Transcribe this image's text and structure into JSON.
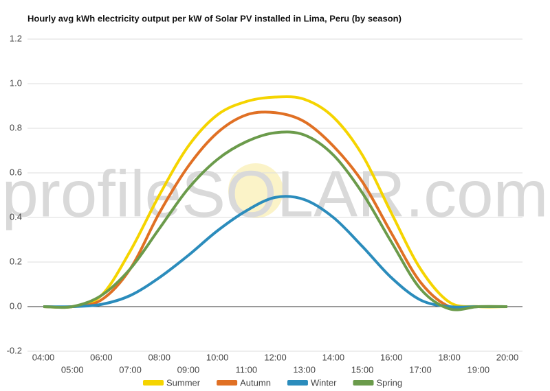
{
  "chart_data": {
    "type": "line",
    "title": "Hourly avg kWh electricity output per kW of Solar PV installed in Lima, Peru (by season)",
    "watermark": "profileSOLAR.com",
    "categories": [
      "04:00",
      "05:00",
      "06:00",
      "07:00",
      "08:00",
      "09:00",
      "10:00",
      "11:00",
      "12:00",
      "13:00",
      "14:00",
      "15:00",
      "16:00",
      "17:00",
      "18:00",
      "19:00",
      "20:00"
    ],
    "series": [
      {
        "name": "Summer",
        "color": "#f5d400",
        "values": [
          0,
          0,
          0.05,
          0.25,
          0.5,
          0.72,
          0.86,
          0.92,
          0.94,
          0.93,
          0.85,
          0.68,
          0.42,
          0.17,
          0.02,
          0,
          0
        ]
      },
      {
        "name": "Autumn",
        "color": "#e07024",
        "values": [
          0,
          0,
          0.03,
          0.17,
          0.42,
          0.63,
          0.78,
          0.86,
          0.87,
          0.83,
          0.72,
          0.56,
          0.33,
          0.11,
          0,
          0,
          0
        ]
      },
      {
        "name": "Winter",
        "color": "#2b8cbc",
        "values": [
          0,
          0,
          0.01,
          0.05,
          0.13,
          0.23,
          0.34,
          0.43,
          0.49,
          0.48,
          0.4,
          0.27,
          0.13,
          0.03,
          0,
          0,
          0
        ]
      },
      {
        "name": "Spring",
        "color": "#6b9b4b",
        "values": [
          0,
          0,
          0.05,
          0.17,
          0.35,
          0.53,
          0.66,
          0.74,
          0.78,
          0.77,
          0.68,
          0.51,
          0.29,
          0.08,
          -0.01,
          0,
          0
        ]
      }
    ],
    "ylim": [
      -0.2,
      1.2
    ],
    "yticks": [
      -0.2,
      {
        "value": 0,
        "label": "0.0"
      },
      0.2,
      0.4,
      0.6,
      0.8,
      {
        "value": 1,
        "label": "1.0"
      },
      1.2
    ],
    "grid": true
  }
}
